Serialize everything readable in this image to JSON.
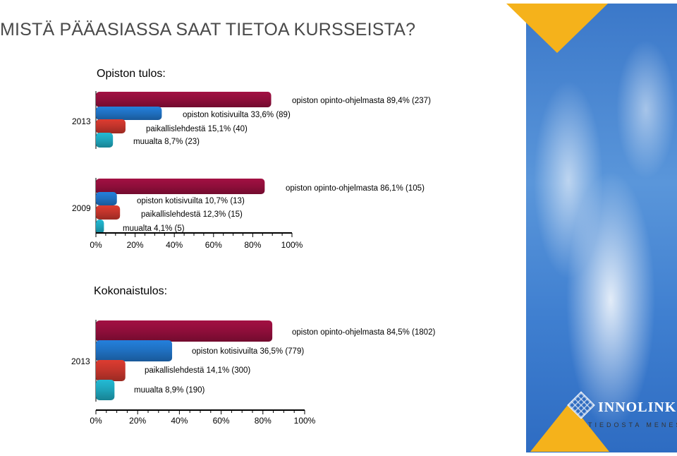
{
  "title": "MISTÄ PÄÄASIASSA SAAT TIETOA KURSSEISTA?",
  "logo": {
    "name": "INNOLINK",
    "tagline": "TIEDOSTA MENESTYS"
  },
  "colors": {
    "red": "#8e0e3a",
    "blue": "#1f6fbf",
    "orange": "#c0342b",
    "teal": "#1ea2b8"
  },
  "chart_data": [
    {
      "type": "bar",
      "orientation": "horizontal",
      "title": "Opiston tulos:",
      "categories": [
        "2013"
      ],
      "series": [
        {
          "name": "opiston opinto-ohjelmasta",
          "values": [
            89.4
          ],
          "count": 237,
          "label": "opiston opinto-ohjelmasta 89,4% (237)",
          "color": "red"
        },
        {
          "name": "opiston kotisivuilta",
          "values": [
            33.6
          ],
          "count": 89,
          "label": "opiston kotisivuilta 33,6% (89)",
          "color": "blue"
        },
        {
          "name": "paikallislehdestä",
          "values": [
            15.1
          ],
          "count": 40,
          "label": "paikallislehdestä 15,1% (40)",
          "color": "orange"
        },
        {
          "name": "muualta",
          "values": [
            8.7
          ],
          "count": 23,
          "label": "muualta 8,7% (23)",
          "color": "teal"
        }
      ],
      "xlim": [
        0,
        100
      ]
    },
    {
      "type": "bar",
      "orientation": "horizontal",
      "categories": [
        "2009"
      ],
      "series": [
        {
          "name": "opiston opinto-ohjelmasta",
          "values": [
            86.1
          ],
          "count": 105,
          "label": "opiston opinto-ohjelmasta 86,1% (105)",
          "color": "red"
        },
        {
          "name": "opiston kotisivuilta",
          "values": [
            10.7
          ],
          "count": 13,
          "label": "opiston kotisivuilta 10,7% (13)",
          "color": "blue"
        },
        {
          "name": "paikallislehdestä",
          "values": [
            12.3
          ],
          "count": 15,
          "label": "paikallislehdestä 12,3% (15)",
          "color": "orange"
        },
        {
          "name": "muualta",
          "values": [
            4.1
          ],
          "count": 5,
          "label": "muualta 4,1% (5)",
          "color": "teal"
        }
      ],
      "xlim": [
        0,
        100
      ],
      "xticks": [
        "0%",
        "20%",
        "40%",
        "60%",
        "80%",
        "100%"
      ]
    },
    {
      "type": "bar",
      "orientation": "horizontal",
      "title": "Kokonaistulos:",
      "categories": [
        "2013"
      ],
      "series": [
        {
          "name": "opiston opinto-ohjelmasta",
          "values": [
            84.5
          ],
          "count": 1802,
          "label": "opiston opinto-ohjelmasta 84,5% (1802)",
          "color": "red"
        },
        {
          "name": "opiston kotisivuilta",
          "values": [
            36.5
          ],
          "count": 779,
          "label": "opiston kotisivuilta 36,5% (779)",
          "color": "blue"
        },
        {
          "name": "paikallislehdestä",
          "values": [
            14.1
          ],
          "count": 300,
          "label": "paikallislehdestä 14,1% (300)",
          "color": "orange"
        },
        {
          "name": "muualta",
          "values": [
            8.9
          ],
          "count": 190,
          "label": "muualta 8,9% (190)",
          "color": "teal"
        }
      ],
      "xlim": [
        0,
        100
      ],
      "xticks": [
        "0%",
        "20%",
        "40%",
        "60%",
        "80%",
        "100%"
      ]
    }
  ]
}
